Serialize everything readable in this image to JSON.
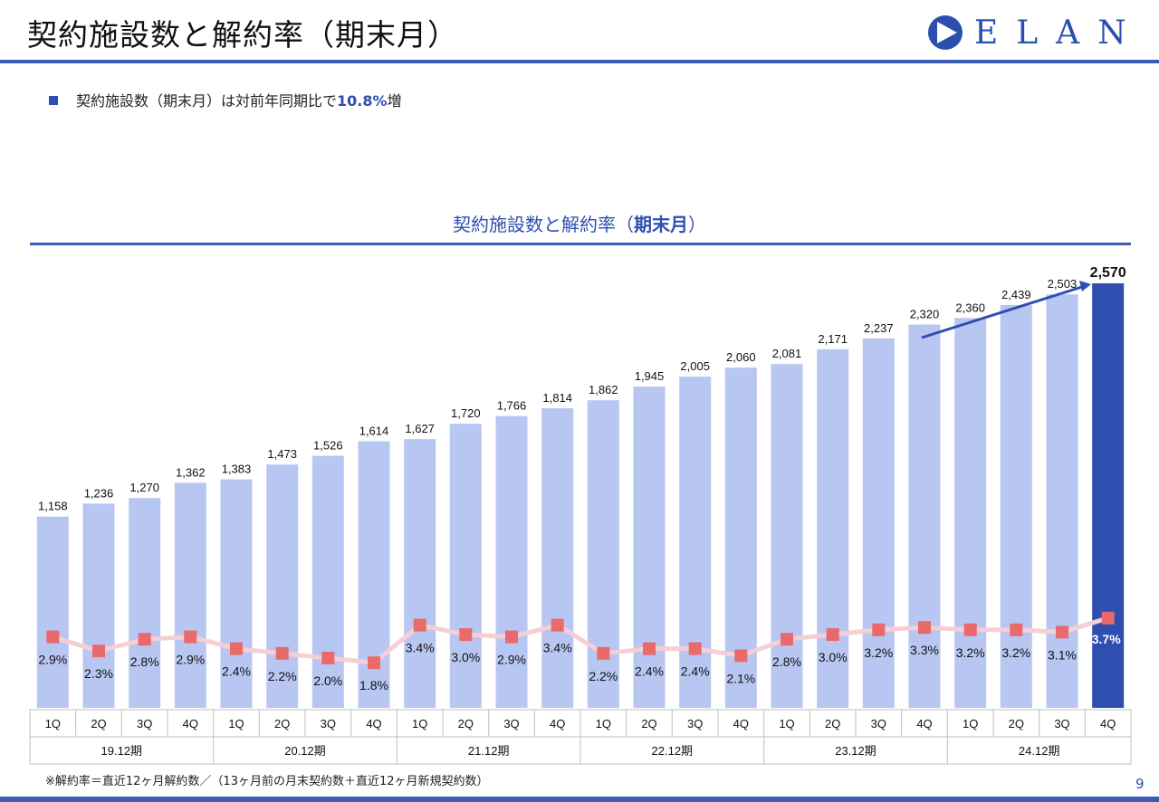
{
  "header": {
    "title": "契約施設数と解約率（期末月）",
    "logo_text": "ELAN"
  },
  "bullet": {
    "prefix": "契約施設数（期末月）は対前年同期比で",
    "highlight": "10.8%",
    "suffix": "増"
  },
  "chart_data": {
    "type": "bar+line",
    "title_part1": "契約施設数と解約率（",
    "title_bold": "期末月",
    "title_part2": "）",
    "categories": [
      "1Q",
      "2Q",
      "3Q",
      "4Q",
      "1Q",
      "2Q",
      "3Q",
      "4Q",
      "1Q",
      "2Q",
      "3Q",
      "4Q",
      "1Q",
      "2Q",
      "3Q",
      "4Q",
      "1Q",
      "2Q",
      "3Q",
      "4Q",
      "1Q",
      "2Q",
      "3Q",
      "4Q"
    ],
    "groups": [
      {
        "label": "19.12期",
        "span": 4
      },
      {
        "label": "20.12期",
        "span": 4
      },
      {
        "label": "21.12期",
        "span": 4
      },
      {
        "label": "22.12期",
        "span": 4
      },
      {
        "label": "23.12期",
        "span": 4
      },
      {
        "label": "24.12期",
        "span": 4
      }
    ],
    "bars": {
      "values": [
        1158,
        1236,
        1270,
        1362,
        1383,
        1473,
        1526,
        1614,
        1627,
        1720,
        1766,
        1814,
        1862,
        1945,
        2005,
        2060,
        2081,
        2171,
        2237,
        2320,
        2360,
        2439,
        2503,
        2570
      ],
      "labels": [
        "1,158",
        "1,236",
        "1,270",
        "1,362",
        "1,383",
        "1,473",
        "1,526",
        "1,614",
        "1,627",
        "1,720",
        "1,766",
        "1,814",
        "1,862",
        "1,945",
        "2,005",
        "2,060",
        "2,081",
        "2,171",
        "2,237",
        "2,320",
        "2,360",
        "2,439",
        "2,503",
        "2,570"
      ],
      "color": "#b8c6f2",
      "highlight_color": "#2f4fb0"
    },
    "line": {
      "values": [
        2.9,
        2.3,
        2.8,
        2.9,
        2.4,
        2.2,
        2.0,
        1.8,
        3.4,
        3.0,
        2.9,
        3.4,
        2.2,
        2.4,
        2.4,
        2.1,
        2.8,
        3.0,
        3.2,
        3.3,
        3.2,
        3.2,
        3.1,
        3.7
      ],
      "labels": [
        "2.9%",
        "2.3%",
        "2.8%",
        "2.9%",
        "2.4%",
        "2.2%",
        "2.0%",
        "1.8%",
        "3.4%",
        "3.0%",
        "2.9%",
        "3.4%",
        "2.2%",
        "2.4%",
        "2.4%",
        "2.1%",
        "2.8%",
        "3.0%",
        "3.2%",
        "3.3%",
        "3.2%",
        "3.2%",
        "3.1%",
        "3.7%"
      ],
      "marker_color": "#e86a6a",
      "line_color": "#f6cfd4"
    }
  },
  "footnote": "※解約率＝直近12ヶ月解約数／（13ヶ月前の月末契約数＋直近12ヶ月新規契約数）",
  "page_number": "9"
}
